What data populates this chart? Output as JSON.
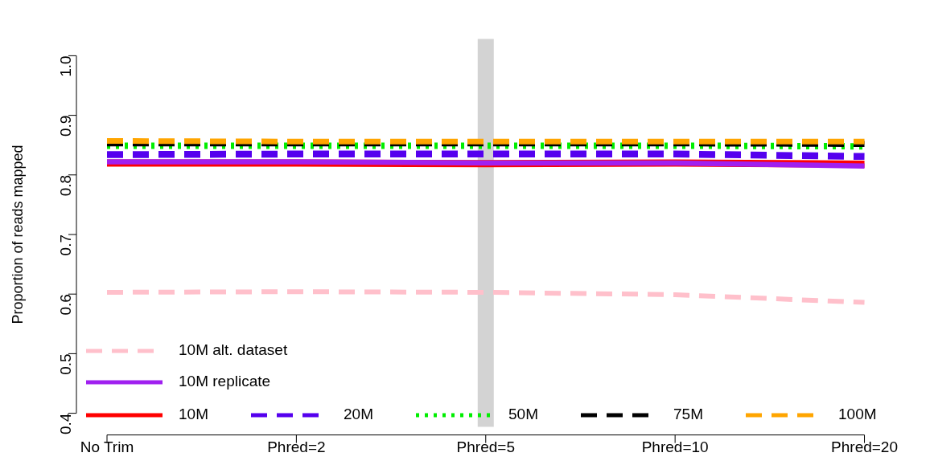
{
  "chart_data": {
    "type": "line",
    "ylabel": "Proportion of reads mapped",
    "categories": [
      "No Trim",
      "Phred=2",
      "Phred=5",
      "Phred=10",
      "Phred=20"
    ],
    "ylim": [
      0.4,
      1.0
    ],
    "yticks": [
      0.4,
      0.5,
      0.6,
      0.7,
      0.8,
      0.9,
      {
        "value": 1,
        "label": "1.0"
      }
    ],
    "grid": false,
    "legend": "bottom left",
    "ref_lines": [
      {
        "axis": "x",
        "value": "Phred=5",
        "color": "#d3d3d3"
      }
    ],
    "series": [
      {
        "name": "10M",
        "color": "#ff0000",
        "line_style": "solid",
        "values": [
          0.82,
          0.82,
          0.819,
          0.82,
          0.818
        ]
      },
      {
        "name": "20M",
        "color": "#5500ee",
        "line_style": "dashed",
        "values": [
          0.834,
          0.835,
          0.835,
          0.835,
          0.831
        ]
      },
      {
        "name": "50M",
        "color": "#00ee00",
        "line_style": "dotted",
        "values": [
          0.849,
          0.849,
          0.849,
          0.849,
          0.848
        ]
      },
      {
        "name": "75M",
        "color": "#000000",
        "line_style": "dashed",
        "values": [
          0.853,
          0.853,
          0.853,
          0.853,
          0.852
        ]
      },
      {
        "name": "100M",
        "color": "#ffa500",
        "line_style": "dashed",
        "values": [
          0.857,
          0.856,
          0.856,
          0.856,
          0.856
        ]
      },
      {
        "name": "10M replicate",
        "color": "#a020f0",
        "line_style": "solid",
        "values": [
          0.822,
          0.822,
          0.82,
          0.82,
          0.815
        ]
      },
      {
        "name": "10M alt. dataset",
        "color": "#ffc0cb",
        "line_style": "dashed",
        "values": [
          0.603,
          0.604,
          0.603,
          0.599,
          0.586
        ]
      }
    ]
  }
}
